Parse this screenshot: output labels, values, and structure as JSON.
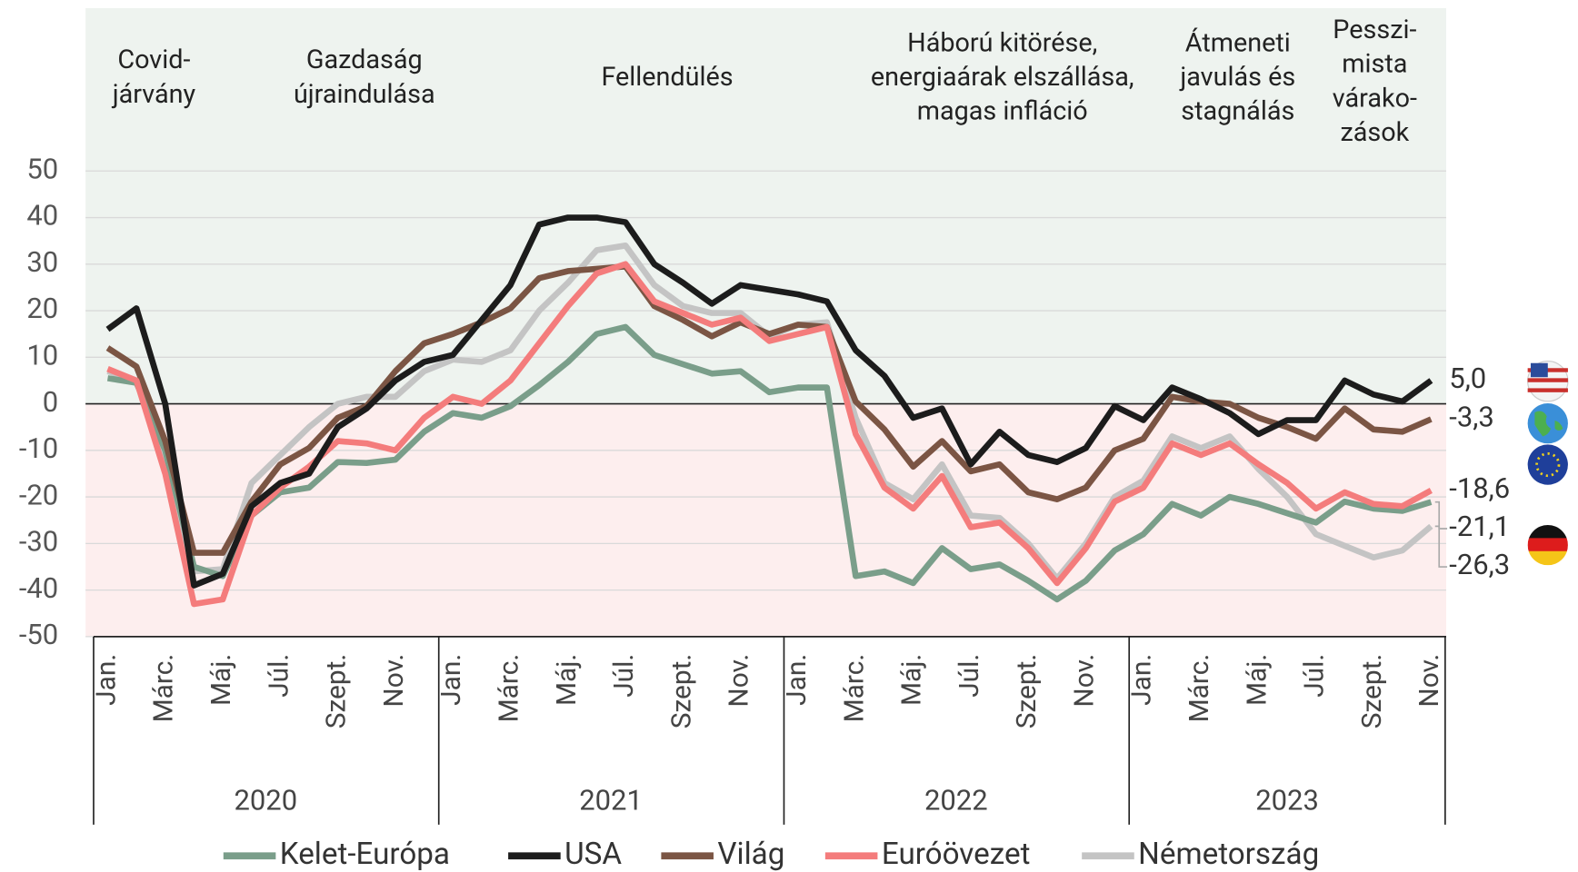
{
  "chart_data": {
    "type": "line",
    "categories": [
      "Jan.",
      null,
      "Márc.",
      null,
      "Máj.",
      null,
      "Júl.",
      null,
      "Szept.",
      null,
      "Nov.",
      null,
      "Jan.",
      null,
      "Márc.",
      null,
      "Máj.",
      null,
      "Júl.",
      null,
      "Szept.",
      null,
      "Nov.",
      null,
      "Jan.",
      null,
      "Márc.",
      null,
      "Máj.",
      null,
      "Júl.",
      null,
      "Szept.",
      null,
      "Nov.",
      null,
      "Jan.",
      null,
      "Márc.",
      null,
      "Máj.",
      null,
      "Júl.",
      null,
      "Szept.",
      null,
      "Nov."
    ],
    "years": [
      "2020",
      "2021",
      "2022",
      "2023"
    ],
    "annotations": [
      {
        "lines": [
          "Covid-",
          "járvány"
        ]
      },
      {
        "lines": [
          "Gazdaság",
          "újraindulása"
        ]
      },
      {
        "lines": [
          "Fellendülés"
        ]
      },
      {
        "lines": [
          "Háború kitörése,",
          "energiaárak elszállása,",
          "magas infláció"
        ]
      },
      {
        "lines": [
          "Átmeneti",
          "javulás és",
          "stagnálás"
        ]
      },
      {
        "lines": [
          "Pesszi-",
          "mista",
          "várako-",
          "zások"
        ]
      }
    ],
    "ylim": [
      -50,
      50
    ],
    "yticks": [
      -50,
      -40,
      -30,
      -20,
      -10,
      0,
      10,
      20,
      30,
      40,
      50
    ],
    "grid": true,
    "series": [
      {
        "name": "Kelet-Európa",
        "color": "#7a9e8a",
        "values": [
          5.5,
          4.5,
          -10,
          -35,
          -37,
          -24,
          -19,
          -18,
          -12.5,
          -12.7,
          -12,
          -6,
          -2,
          -3,
          -0.5,
          4,
          9,
          15,
          16.5,
          10.5,
          8.5,
          6.5,
          7,
          2.5,
          3.5,
          3.5,
          -37,
          -36,
          -38.5,
          -31,
          -35.5,
          -34.5,
          -38,
          -42,
          -38,
          -31.5,
          -28,
          -21.5,
          -24,
          -20,
          -21.5,
          -23.5,
          -25.5,
          -21,
          -22.5,
          -23,
          -21.1
        ],
        "value_labels": [
          null,
          null,
          null,
          null,
          null,
          null,
          null,
          null,
          null,
          null,
          null,
          null,
          null,
          null,
          null,
          null,
          null,
          null,
          null,
          null,
          null,
          null,
          null,
          null,
          null,
          null,
          null,
          null,
          null,
          null,
          null,
          null,
          null,
          null,
          null,
          null,
          null,
          null,
          null,
          null,
          null,
          null,
          null,
          null,
          null,
          null,
          "-21,1"
        ]
      },
      {
        "name": "USA",
        "color": "#1c1c1c",
        "values": [
          16,
          20.5,
          0,
          -39,
          -36.5,
          -22,
          -17,
          -15,
          -5,
          -1,
          5,
          9,
          10.5,
          18,
          25.5,
          38.5,
          40,
          40,
          39,
          30,
          26,
          21.5,
          25.5,
          24.5,
          23.5,
          22,
          11.5,
          6,
          -3,
          -1,
          -13,
          -6,
          -11,
          -12.5,
          -9.5,
          -0.5,
          -3.5,
          3.5,
          1,
          -2,
          -6.5,
          -3.5,
          -3.5,
          5,
          2,
          0.5,
          5.0
        ],
        "value_labels": [
          null,
          null,
          null,
          null,
          null,
          null,
          null,
          null,
          null,
          null,
          null,
          null,
          null,
          null,
          null,
          null,
          null,
          null,
          null,
          null,
          null,
          null,
          null,
          null,
          null,
          null,
          null,
          null,
          null,
          null,
          null,
          null,
          null,
          null,
          null,
          null,
          null,
          null,
          null,
          null,
          null,
          null,
          null,
          null,
          null,
          null,
          "5,0"
        ]
      },
      {
        "name": "Világ",
        "color": "#7b5544",
        "values": [
          12,
          8,
          -8,
          -32,
          -32,
          -21,
          -13,
          -9.5,
          -3,
          -0.5,
          7,
          13,
          15,
          17.5,
          20.5,
          27,
          28.5,
          29,
          29.5,
          21,
          18,
          14.5,
          17.5,
          15,
          17,
          16.5,
          0.5,
          -5.5,
          -13.5,
          -8,
          -14.5,
          -13,
          -19,
          -20.5,
          -18,
          -10,
          -7.5,
          1.5,
          0.5,
          0,
          -3,
          -5,
          -7.5,
          -1,
          -5.5,
          -6,
          -3.3
        ],
        "value_labels": [
          null,
          null,
          null,
          null,
          null,
          null,
          null,
          null,
          null,
          null,
          null,
          null,
          null,
          null,
          null,
          null,
          null,
          null,
          null,
          null,
          null,
          null,
          null,
          null,
          null,
          null,
          null,
          null,
          null,
          null,
          null,
          null,
          null,
          null,
          null,
          null,
          null,
          null,
          null,
          null,
          null,
          null,
          null,
          null,
          null,
          null,
          "-3,3"
        ]
      },
      {
        "name": "Euróövezet",
        "color": "#f47c7c",
        "values": [
          7.5,
          5,
          -15,
          -43,
          -42,
          -24,
          -18,
          -13.5,
          -8,
          -8.5,
          -10,
          -3,
          1.5,
          0,
          5,
          13,
          21,
          28,
          30,
          22,
          19.5,
          17,
          18.5,
          13.5,
          15,
          16.5,
          -6.5,
          -18,
          -22.5,
          -15.5,
          -26.5,
          -25.5,
          -31,
          -38.5,
          -31,
          -21,
          -18,
          -8.5,
          -11,
          -8.5,
          -13,
          -17,
          -22.5,
          -19,
          -21.5,
          -22,
          -18.6
        ],
        "value_labels": [
          null,
          null,
          null,
          null,
          null,
          null,
          null,
          null,
          null,
          null,
          null,
          null,
          null,
          null,
          null,
          null,
          null,
          null,
          null,
          null,
          null,
          null,
          null,
          null,
          null,
          null,
          null,
          null,
          null,
          null,
          null,
          null,
          null,
          null,
          null,
          null,
          null,
          null,
          null,
          null,
          null,
          null,
          null,
          null,
          null,
          null,
          "-18,6"
        ]
      },
      {
        "name": "Németország",
        "color": "#c4c4c4",
        "values": [
          7,
          5,
          -12,
          -36,
          -35.5,
          -17,
          -11,
          -5,
          0,
          1.5,
          1.5,
          7,
          9.5,
          9,
          11.5,
          20,
          26,
          33,
          34,
          25.5,
          21,
          19.5,
          19.5,
          14.5,
          17,
          17.5,
          -3,
          -17,
          -20.5,
          -13,
          -24,
          -24.5,
          -30,
          -37.5,
          -30,
          -20,
          -16.5,
          -7,
          -9.5,
          -7,
          -14,
          -20,
          -28,
          -30.5,
          -33,
          -31.5,
          -26.3
        ],
        "value_labels": [
          null,
          null,
          null,
          null,
          null,
          null,
          null,
          null,
          null,
          null,
          null,
          null,
          null,
          null,
          null,
          null,
          null,
          null,
          null,
          null,
          null,
          null,
          null,
          null,
          null,
          null,
          null,
          null,
          null,
          null,
          null,
          null,
          null,
          null,
          null,
          null,
          null,
          null,
          null,
          null,
          null,
          null,
          null,
          null,
          null,
          null,
          "-26,3"
        ]
      }
    ]
  }
}
